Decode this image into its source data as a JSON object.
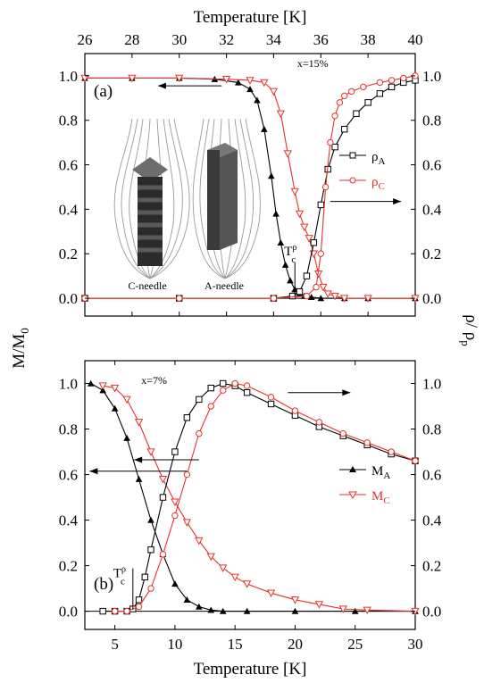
{
  "chart_data": [
    {
      "id": "panel_a",
      "type": "line",
      "panel_label": "(a)",
      "annotation": "x=15%",
      "top_xlabel": "Temperature [K]",
      "xlim": [
        26,
        40
      ],
      "xticks": [
        "26",
        "28",
        "30",
        "32",
        "34",
        "36",
        "38",
        "40"
      ],
      "ylabel_left": "M/M",
      "ylabel_left_sub": "0",
      "ylabel_right": "ρ/ ρ",
      "ylabel_right_sub": "p",
      "ylim": [
        -0.08,
        1.1
      ],
      "yticks_left": [
        "0.0",
        "0.2",
        "0.4",
        "0.6",
        "0.8",
        "1.0"
      ],
      "yticks_right": [
        "0.0",
        "0.2",
        "0.4",
        "0.6",
        "0.8",
        "1.0"
      ],
      "tc_label": "T",
      "tc_sup": "ρ",
      "tc_sub": "c",
      "tc_x": 34.9,
      "inset_labels": [
        "C-needle",
        "A-needle"
      ],
      "legend": [
        {
          "name": "ρ",
          "sub": "A",
          "color": "#000000",
          "marker": "square"
        },
        {
          "name": "ρ",
          "sub": "C",
          "color": "#e8312a",
          "marker": "circle"
        }
      ],
      "series": [
        {
          "name": "M_A",
          "color": "#000000",
          "marker": "triangle-up",
          "x": [
            26.0,
            28.0,
            30.0,
            31.5,
            32.5,
            33.0,
            33.3,
            33.6,
            33.9,
            34.1,
            34.3,
            34.5,
            34.7,
            34.9,
            35.1,
            35.3,
            35.6,
            36.0,
            37.0,
            38.0,
            40.0
          ],
          "y": [
            0.99,
            0.99,
            0.99,
            0.985,
            0.97,
            0.94,
            0.89,
            0.76,
            0.55,
            0.38,
            0.25,
            0.15,
            0.08,
            0.04,
            0.02,
            0.01,
            0.005,
            0.0,
            0.0,
            0.0,
            0.0
          ]
        },
        {
          "name": "M_C",
          "color": "#e8312a",
          "marker": "triangle-down",
          "x": [
            26.0,
            28.0,
            30.0,
            32.0,
            33.0,
            33.6,
            34.0,
            34.3,
            34.6,
            34.9,
            35.1,
            35.3,
            35.5,
            35.7,
            35.9,
            36.1,
            36.3,
            36.6,
            37.0,
            38.0,
            40.0
          ],
          "y": [
            0.99,
            0.99,
            0.99,
            0.985,
            0.98,
            0.97,
            0.93,
            0.83,
            0.65,
            0.48,
            0.38,
            0.32,
            0.27,
            0.2,
            0.11,
            0.05,
            0.02,
            0.01,
            0.0,
            0.0,
            0.0
          ]
        },
        {
          "name": "ρ_A",
          "color": "#000000",
          "marker": "square",
          "x": [
            26.0,
            30.0,
            34.0,
            34.8,
            35.1,
            35.4,
            35.7,
            36.0,
            36.3,
            36.6,
            37.0,
            37.5,
            38.0,
            38.5,
            39.0,
            39.5,
            40.0
          ],
          "y": [
            0.0,
            0.0,
            0.0,
            0.01,
            0.03,
            0.1,
            0.25,
            0.42,
            0.58,
            0.68,
            0.76,
            0.83,
            0.88,
            0.92,
            0.95,
            0.97,
            0.98
          ]
        },
        {
          "name": "ρ_C",
          "color": "#e8312a",
          "marker": "circle",
          "x": [
            26.0,
            30.0,
            34.0,
            35.4,
            35.8,
            36.0,
            36.2,
            36.4,
            36.6,
            36.8,
            37.0,
            37.3,
            37.8,
            38.5,
            39.0,
            39.5,
            40.0
          ],
          "y": [
            0.0,
            0.0,
            0.0,
            0.01,
            0.05,
            0.2,
            0.5,
            0.7,
            0.82,
            0.88,
            0.91,
            0.93,
            0.95,
            0.97,
            0.98,
            0.99,
            1.0
          ]
        }
      ],
      "arrows": [
        {
          "dir": "left",
          "x1": 31.8,
          "x2": 29.1,
          "y": 0.955
        },
        {
          "dir": "right",
          "x1": 36.4,
          "x2": 39.4,
          "y": 0.435
        }
      ]
    },
    {
      "id": "panel_b",
      "type": "line",
      "panel_label": "(b)",
      "annotation": "x=7%",
      "xlabel": "Temperature [K]",
      "xlim": [
        2.5,
        30
      ],
      "xticks": [
        "5",
        "10",
        "15",
        "20",
        "25",
        "30"
      ],
      "ylabel_left": "M/M",
      "ylabel_left_sub": "0",
      "ylabel_right": "ρ/ ρ",
      "ylabel_right_sub": "p",
      "ylim": [
        -0.08,
        1.1
      ],
      "yticks_left": [
        "0.0",
        "0.2",
        "0.4",
        "0.6",
        "0.8",
        "1.0"
      ],
      "yticks_right": [
        "0.0",
        "0.2",
        "0.4",
        "0.6",
        "0.8",
        "1.0"
      ],
      "tc_label": "T",
      "tc_sup": "ρ",
      "tc_sub": "c",
      "tc_x": 6.5,
      "legend": [
        {
          "name": "M",
          "sub": "A",
          "color": "#000000",
          "marker": "triangle-up"
        },
        {
          "name": "M",
          "sub": "C",
          "color": "#e8312a",
          "marker": "triangle-down"
        }
      ],
      "series": [
        {
          "name": "M_A",
          "color": "#000000",
          "marker": "triangle-up",
          "x": [
            3.0,
            4.0,
            5.0,
            6.0,
            7.0,
            8.0,
            9.0,
            10.0,
            11.0,
            12.0,
            13.0,
            14.0,
            16.0,
            20.0,
            25.0,
            30.0
          ],
          "y": [
            1.0,
            0.97,
            0.89,
            0.76,
            0.58,
            0.4,
            0.25,
            0.12,
            0.05,
            0.02,
            0.005,
            0.0,
            0.0,
            0.0,
            0.0,
            0.0
          ]
        },
        {
          "name": "M_C",
          "color": "#e8312a",
          "marker": "triangle-down",
          "x": [
            4.0,
            5.0,
            6.0,
            7.0,
            8.0,
            9.0,
            10.0,
            11.0,
            12.0,
            13.0,
            14.0,
            15.0,
            16.0,
            18.0,
            20.0,
            22.0,
            24.0,
            26.0,
            30.0
          ],
          "y": [
            0.99,
            0.98,
            0.93,
            0.83,
            0.7,
            0.58,
            0.48,
            0.39,
            0.31,
            0.24,
            0.19,
            0.15,
            0.12,
            0.08,
            0.05,
            0.03,
            0.01,
            0.005,
            0.0
          ]
        },
        {
          "name": "ρ_A",
          "color": "#000000",
          "marker": "square",
          "x": [
            4.0,
            5.0,
            6.0,
            6.5,
            7.0,
            7.5,
            8.0,
            9.0,
            10.0,
            11.0,
            12.0,
            13.0,
            14.0,
            15.0,
            16.0,
            18.0,
            20.0,
            22.0,
            24.0,
            26.0,
            28.0,
            30.0
          ],
          "y": [
            0.0,
            0.0,
            0.0,
            0.01,
            0.05,
            0.15,
            0.27,
            0.5,
            0.7,
            0.85,
            0.93,
            0.98,
            1.0,
            0.99,
            0.96,
            0.91,
            0.86,
            0.81,
            0.77,
            0.73,
            0.69,
            0.66
          ]
        },
        {
          "name": "ρ_C",
          "color": "#e8312a",
          "marker": "circle",
          "x": [
            5.0,
            6.0,
            7.0,
            8.0,
            9.0,
            10.0,
            11.0,
            12.0,
            13.0,
            14.0,
            15.0,
            16.0,
            18.0,
            20.0,
            22.0,
            24.0,
            26.0,
            28.0,
            30.0
          ],
          "y": [
            0.0,
            0.0,
            0.02,
            0.1,
            0.25,
            0.42,
            0.6,
            0.78,
            0.9,
            0.97,
            1.0,
            0.99,
            0.94,
            0.88,
            0.83,
            0.78,
            0.74,
            0.7,
            0.66
          ]
        }
      ],
      "arrows": [
        {
          "dir": "left",
          "x1": 12.0,
          "x2": 6.6,
          "y": 0.665
        },
        {
          "dir": "left",
          "x1": 11.0,
          "x2": 2.9,
          "y": 0.615
        },
        {
          "dir": "right",
          "x1": 19.4,
          "x2": 24.6,
          "y": 0.96
        }
      ]
    }
  ]
}
